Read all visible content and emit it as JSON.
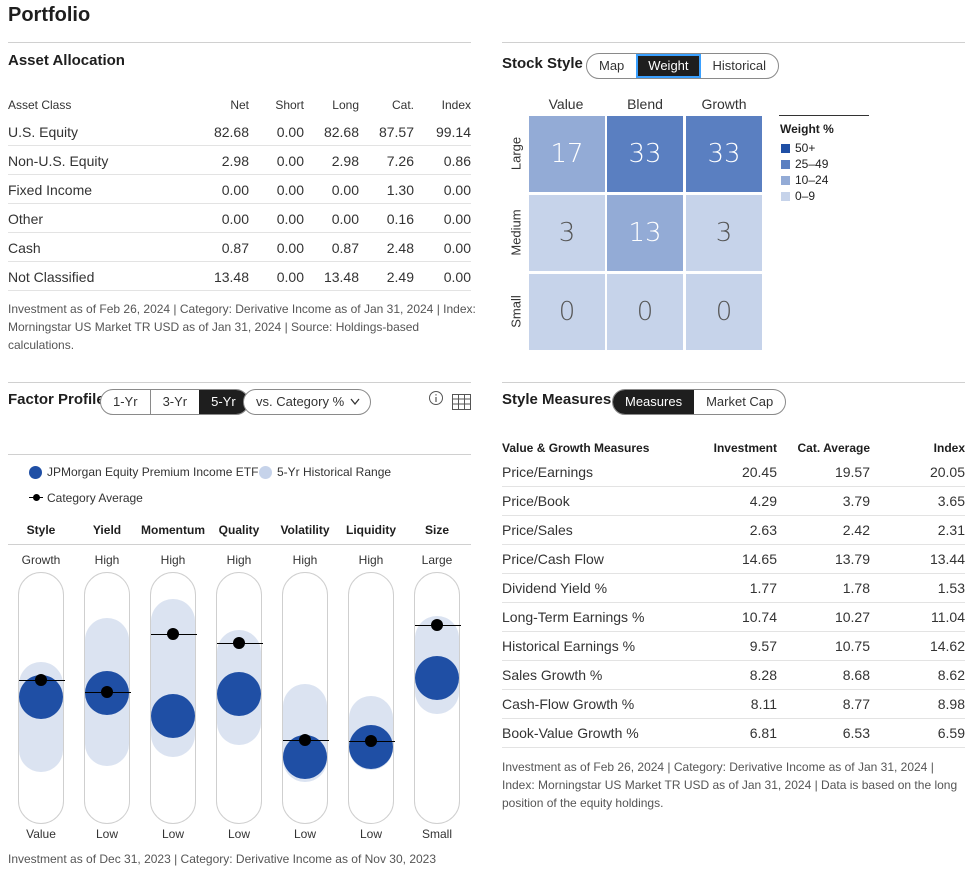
{
  "page_title": "Portfolio",
  "asset_allocation": {
    "title": "Asset Allocation",
    "columns": [
      "Asset Class",
      "Net",
      "Short",
      "Long",
      "Cat.",
      "Index"
    ],
    "rows": [
      [
        "U.S. Equity",
        "82.68",
        "0.00",
        "82.68",
        "87.57",
        "99.14"
      ],
      [
        "Non-U.S. Equity",
        "2.98",
        "0.00",
        "2.98",
        "7.26",
        "0.86"
      ],
      [
        "Fixed Income",
        "0.00",
        "0.00",
        "0.00",
        "1.30",
        "0.00"
      ],
      [
        "Other",
        "0.00",
        "0.00",
        "0.00",
        "0.16",
        "0.00"
      ],
      [
        "Cash",
        "0.87",
        "0.00",
        "0.87",
        "2.48",
        "0.00"
      ],
      [
        "Not Classified",
        "13.48",
        "0.00",
        "13.48",
        "2.49",
        "0.00"
      ]
    ],
    "note": "Investment as of Feb 26, 2024 | Category: Derivative Income as of Jan 31, 2024 | Index: Morningstar US Market TR USD as of Jan 31, 2024 | Source: Holdings-based calculations."
  },
  "stock_style": {
    "title": "Stock Style",
    "tabs": [
      "Map",
      "Weight",
      "Historical"
    ],
    "active_tab": "Weight",
    "col_labels": [
      "Value",
      "Blend",
      "Growth"
    ],
    "row_labels": [
      "Large",
      "Medium",
      "Small"
    ],
    "grid": [
      [
        "17",
        "33",
        "33"
      ],
      [
        "3",
        "13",
        "3"
      ],
      [
        "0",
        "0",
        "0"
      ]
    ],
    "legend_title": "Weight %",
    "legend": [
      {
        "label": "50+",
        "color": "#1f4fa5"
      },
      {
        "label": "25–49",
        "color": "#5a7fc1"
      },
      {
        "label": "10–24",
        "color": "#93abd6"
      },
      {
        "label": "0–9",
        "color": "#c6d3ea"
      }
    ]
  },
  "factor_profile": {
    "title": "Factor Profile",
    "periods": [
      "1-Yr",
      "3-Yr",
      "5-Yr"
    ],
    "active_period": "5-Yr",
    "dropdown_label": "vs. Category %",
    "legend_fund": "JPMorgan Equity Premium Income ETF",
    "legend_range": "5-Yr Historical Range",
    "legend_category": "Category Average",
    "factors": [
      {
        "name": "Style",
        "top": "Growth",
        "bottom": "Value"
      },
      {
        "name": "Yield",
        "top": "High",
        "bottom": "Low"
      },
      {
        "name": "Momentum",
        "top": "High",
        "bottom": "Low"
      },
      {
        "name": "Quality",
        "top": "High",
        "bottom": "Low"
      },
      {
        "name": "Volatility",
        "top": "High",
        "bottom": "Low"
      },
      {
        "name": "Liquidity",
        "top": "High",
        "bottom": "Low"
      },
      {
        "name": "Size",
        "top": "Large",
        "bottom": "Small"
      }
    ],
    "note": "Investment as of Dec 31, 2023 | Category: Derivative Income as of Nov 30, 2023"
  },
  "style_measures": {
    "title": "Style Measures",
    "tabs": [
      "Measures",
      "Market Cap"
    ],
    "active_tab": "Measures",
    "columns": [
      "Value & Growth Measures",
      "Investment",
      "Cat. Average",
      "Index"
    ],
    "rows": [
      [
        "Price/Earnings",
        "20.45",
        "19.57",
        "20.05"
      ],
      [
        "Price/Book",
        "4.29",
        "3.79",
        "3.65"
      ],
      [
        "Price/Sales",
        "2.63",
        "2.42",
        "2.31"
      ],
      [
        "Price/Cash Flow",
        "14.65",
        "13.79",
        "13.44"
      ],
      [
        "Dividend Yield %",
        "1.77",
        "1.78",
        "1.53"
      ],
      [
        "Long-Term Earnings %",
        "10.74",
        "10.27",
        "11.04"
      ],
      [
        "Historical Earnings %",
        "9.57",
        "10.75",
        "14.62"
      ],
      [
        "Sales Growth %",
        "8.28",
        "8.68",
        "8.62"
      ],
      [
        "Cash-Flow Growth %",
        "8.11",
        "8.77",
        "8.98"
      ],
      [
        "Book-Value Growth %",
        "6.81",
        "6.53",
        "6.59"
      ]
    ],
    "note": "Investment as of Feb 26, 2024 | Category: Derivative Income as of Jan 31, 2024 | Index: Morningstar US Market TR USD as of Jan 31, 2024 | Data is based on the long position of the equity holdings."
  }
}
